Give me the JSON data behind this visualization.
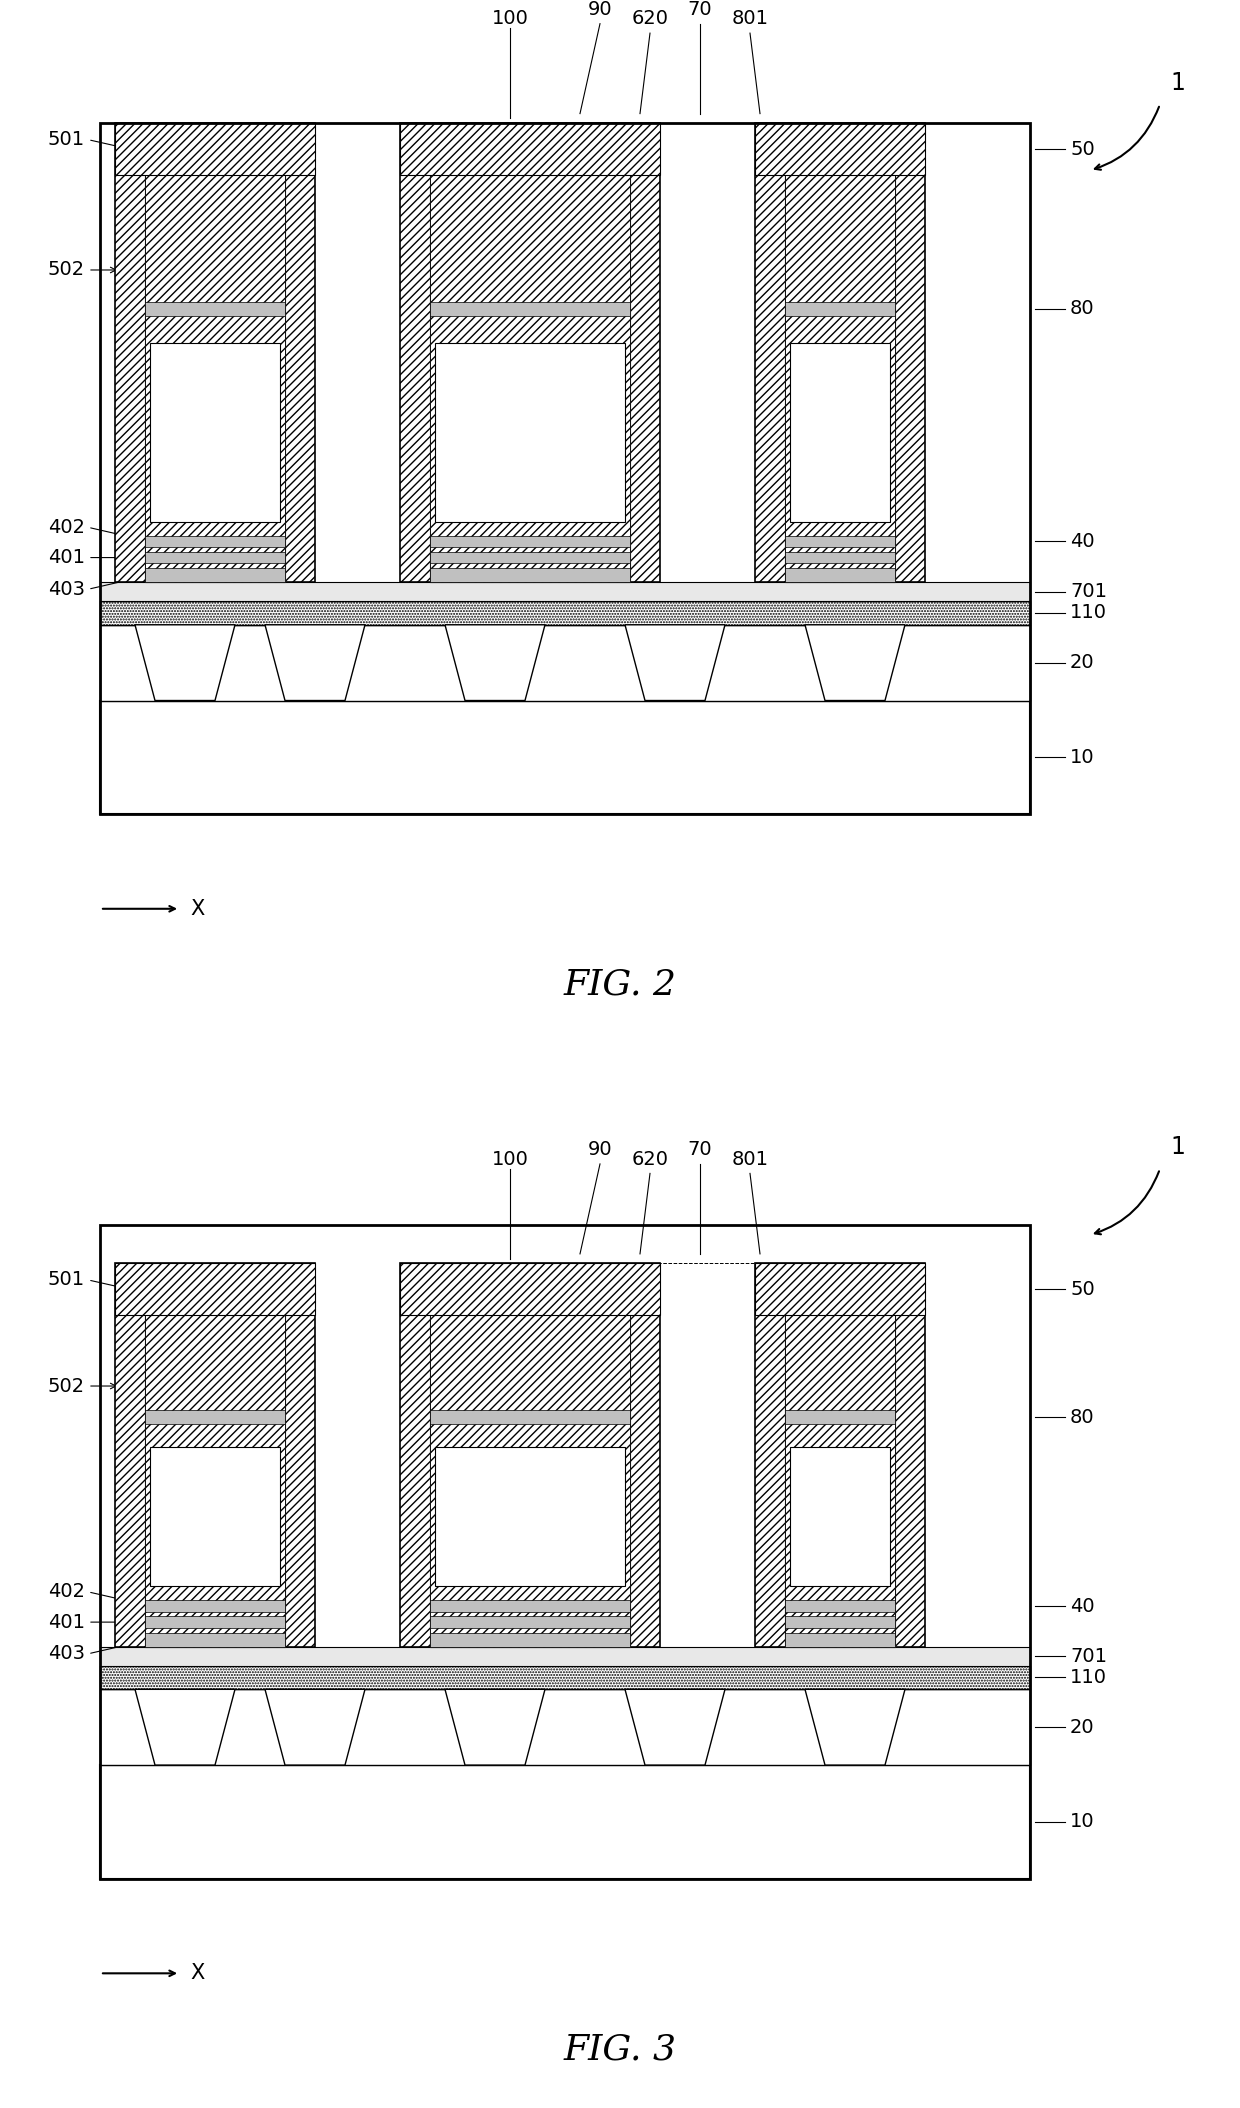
{
  "fig_width": 12.4,
  "fig_height": 21.08,
  "bg_color": "#ffffff",
  "fig2_title": "FIG. 2",
  "fig3_title": "FIG. 3",
  "title_fontsize": 26,
  "label_fontsize": 14
}
